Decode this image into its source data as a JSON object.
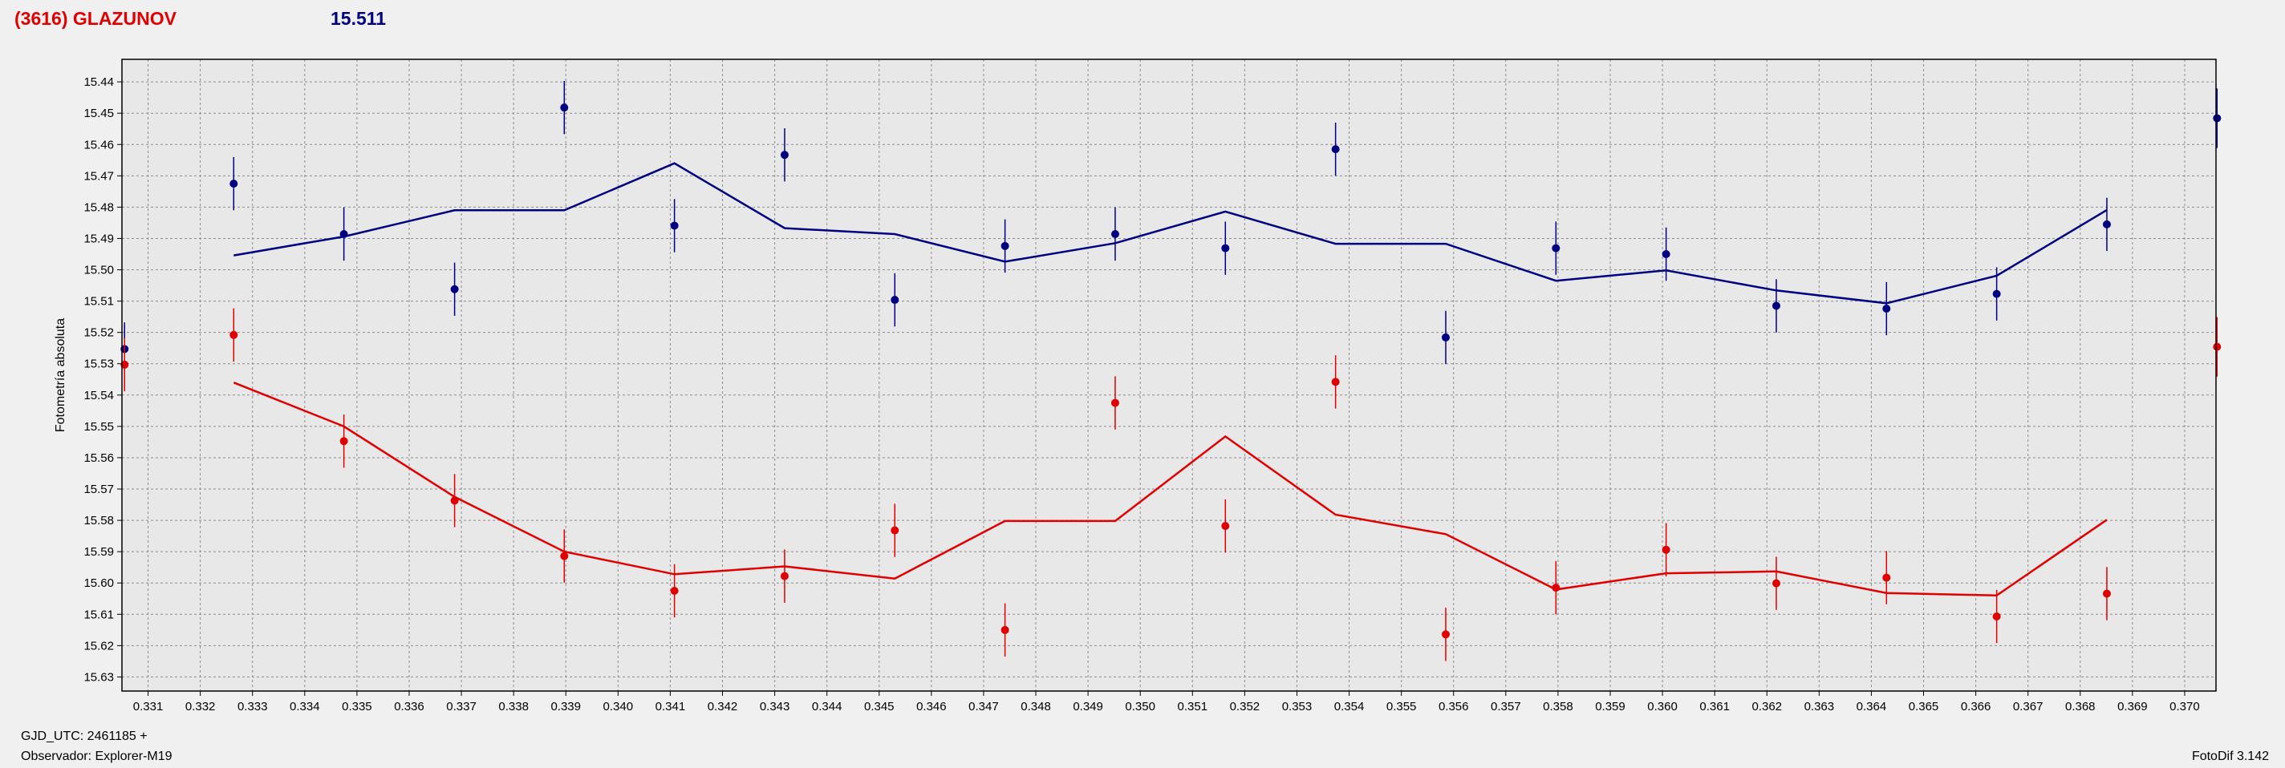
{
  "header": {
    "object": "(3616) GLAZUNOV",
    "mean_mag": "15.511"
  },
  "footer": {
    "gjd": "GJD_UTC: 2461185 +",
    "observer": "Observador: Explorer-M19",
    "software": "FotoDif 3.142"
  },
  "colors": {
    "blue": "#000080",
    "red": "#e00000",
    "plot_bg": "#e8e8e8",
    "grid": "#8c8c8c"
  },
  "chart_data": {
    "type": "scatter",
    "ylabel": "Fotometría absoluta",
    "xlabel": "",
    "xlim": [
      0.3305,
      0.3706
    ],
    "ylim": [
      15.6345,
      15.4328
    ],
    "y_inverted": true,
    "grid": true,
    "x_ticks": [
      0.331,
      0.332,
      0.333,
      0.334,
      0.335,
      0.336,
      0.337,
      0.338,
      0.339,
      0.34,
      0.341,
      0.342,
      0.343,
      0.344,
      0.345,
      0.346,
      0.347,
      0.348,
      0.349,
      0.35,
      0.351,
      0.352,
      0.353,
      0.354,
      0.355,
      0.356,
      0.357,
      0.358,
      0.359,
      0.36,
      0.361,
      0.362,
      0.363,
      0.364,
      0.365,
      0.366,
      0.367,
      0.368,
      0.369,
      0.37
    ],
    "x_tick_labels": [
      "0.331",
      "0.332",
      "0.333",
      "0.334",
      "0.335",
      "0.336",
      "0.337",
      "0.338",
      "0.339",
      "0.340",
      "0.341",
      "0.342",
      "0.343",
      "0.344",
      "0.345",
      "0.346",
      "0.347",
      "0.348",
      "0.349",
      "0.350",
      "0.351",
      "0.352",
      "0.353",
      "0.354",
      "0.355",
      "0.356",
      "0.357",
      "0.358",
      "0.359",
      "0.360",
      "0.361",
      "0.362",
      "0.363",
      "0.364",
      "0.365",
      "0.366",
      "0.367",
      "0.368",
      "0.369",
      "0.370"
    ],
    "y_ticks": [
      15.44,
      15.45,
      15.46,
      15.47,
      15.48,
      15.49,
      15.5,
      15.51,
      15.52,
      15.53,
      15.54,
      15.55,
      15.56,
      15.57,
      15.58,
      15.59,
      15.6,
      15.61,
      15.62,
      15.63
    ],
    "y_tick_labels": [
      "15.44",
      "15.45",
      "15.46",
      "15.47",
      "15.48",
      "15.49",
      "15.50",
      "15.51",
      "15.52",
      "15.53",
      "15.54",
      "15.55",
      "15.56",
      "15.57",
      "15.58",
      "15.59",
      "15.60",
      "15.61",
      "15.62",
      "15.63"
    ],
    "series": [
      {
        "color": "#000080",
        "points": [
          {
            "x": 0.33055,
            "y": 15.5253,
            "err": 0.0085
          },
          {
            "x": 0.33264,
            "y": 15.4725,
            "err": 0.0085
          },
          {
            "x": 0.33475,
            "y": 15.4886,
            "err": 0.0085
          },
          {
            "x": 0.33687,
            "y": 15.5062,
            "err": 0.0085
          },
          {
            "x": 0.33897,
            "y": 15.4482,
            "err": 0.0085
          },
          {
            "x": 0.34108,
            "y": 15.4859,
            "err": 0.0085
          },
          {
            "x": 0.34319,
            "y": 15.4633,
            "err": 0.0085
          },
          {
            "x": 0.3453,
            "y": 15.5096,
            "err": 0.0085
          },
          {
            "x": 0.34741,
            "y": 15.4924,
            "err": 0.0085
          },
          {
            "x": 0.34952,
            "y": 15.4886,
            "err": 0.0085
          },
          {
            "x": 0.35163,
            "y": 15.4931,
            "err": 0.0085
          },
          {
            "x": 0.35374,
            "y": 15.4615,
            "err": 0.0085
          },
          {
            "x": 0.35585,
            "y": 15.5216,
            "err": 0.0085
          },
          {
            "x": 0.35796,
            "y": 15.4931,
            "err": 0.0085
          },
          {
            "x": 0.36007,
            "y": 15.495,
            "err": 0.0085
          },
          {
            "x": 0.36218,
            "y": 15.5115,
            "err": 0.0085
          },
          {
            "x": 0.36429,
            "y": 15.5124,
            "err": 0.0085
          },
          {
            "x": 0.3664,
            "y": 15.5077,
            "err": 0.0085
          },
          {
            "x": 0.36851,
            "y": 15.4855,
            "err": 0.0085
          },
          {
            "x": 0.37062,
            "y": 15.4516,
            "err": 0.0095
          }
        ],
        "line": [
          {
            "x": 0.33264,
            "y": 15.4954
          },
          {
            "x": 0.33475,
            "y": 15.4894
          },
          {
            "x": 0.33687,
            "y": 15.481
          },
          {
            "x": 0.33897,
            "y": 15.481
          },
          {
            "x": 0.34108,
            "y": 15.466
          },
          {
            "x": 0.34319,
            "y": 15.4867
          },
          {
            "x": 0.3453,
            "y": 15.4886
          },
          {
            "x": 0.34741,
            "y": 15.4974
          },
          {
            "x": 0.34952,
            "y": 15.4915
          },
          {
            "x": 0.35163,
            "y": 15.4814
          },
          {
            "x": 0.35374,
            "y": 15.4917
          },
          {
            "x": 0.35585,
            "y": 15.4917
          },
          {
            "x": 0.35796,
            "y": 15.5035
          },
          {
            "x": 0.36007,
            "y": 15.5002
          },
          {
            "x": 0.36218,
            "y": 15.5066
          },
          {
            "x": 0.36429,
            "y": 15.5107
          },
          {
            "x": 0.3664,
            "y": 15.5019
          },
          {
            "x": 0.36851,
            "y": 15.4809
          }
        ]
      },
      {
        "color": "#e00000",
        "points": [
          {
            "x": 0.33055,
            "y": 15.5303,
            "err": 0.0085
          },
          {
            "x": 0.33264,
            "y": 15.5208,
            "err": 0.0085
          },
          {
            "x": 0.33475,
            "y": 15.5547,
            "err": 0.0085
          },
          {
            "x": 0.33687,
            "y": 15.5737,
            "err": 0.0085
          },
          {
            "x": 0.33897,
            "y": 15.5914,
            "err": 0.0085
          },
          {
            "x": 0.34108,
            "y": 15.6025,
            "err": 0.0085
          },
          {
            "x": 0.34319,
            "y": 15.5978,
            "err": 0.0085
          },
          {
            "x": 0.3453,
            "y": 15.5832,
            "err": 0.0085
          },
          {
            "x": 0.34741,
            "y": 15.615,
            "err": 0.0085
          },
          {
            "x": 0.34952,
            "y": 15.5425,
            "err": 0.0085
          },
          {
            "x": 0.35163,
            "y": 15.5818,
            "err": 0.0085
          },
          {
            "x": 0.35374,
            "y": 15.5358,
            "err": 0.0085
          },
          {
            "x": 0.35585,
            "y": 15.6164,
            "err": 0.0085
          },
          {
            "x": 0.35796,
            "y": 15.6015,
            "err": 0.0085
          },
          {
            "x": 0.36007,
            "y": 15.5894,
            "err": 0.0085
          },
          {
            "x": 0.36218,
            "y": 15.6001,
            "err": 0.0085
          },
          {
            "x": 0.36429,
            "y": 15.5983,
            "err": 0.0085
          },
          {
            "x": 0.3664,
            "y": 15.6107,
            "err": 0.0085
          },
          {
            "x": 0.36851,
            "y": 15.6034,
            "err": 0.0085
          },
          {
            "x": 0.37062,
            "y": 15.5246,
            "err": 0.0095
          }
        ],
        "line": [
          {
            "x": 0.33264,
            "y": 15.536
          },
          {
            "x": 0.33475,
            "y": 15.55
          },
          {
            "x": 0.33687,
            "y": 15.5725
          },
          {
            "x": 0.33897,
            "y": 15.59
          },
          {
            "x": 0.34108,
            "y": 15.5972
          },
          {
            "x": 0.34319,
            "y": 15.5947
          },
          {
            "x": 0.3453,
            "y": 15.5986
          },
          {
            "x": 0.34741,
            "y": 15.5802
          },
          {
            "x": 0.34952,
            "y": 15.5802
          },
          {
            "x": 0.35163,
            "y": 15.5532
          },
          {
            "x": 0.35374,
            "y": 15.5782
          },
          {
            "x": 0.35585,
            "y": 15.5844
          },
          {
            "x": 0.35796,
            "y": 15.6021
          },
          {
            "x": 0.36007,
            "y": 15.5969
          },
          {
            "x": 0.36218,
            "y": 15.5963
          },
          {
            "x": 0.36429,
            "y": 15.6032
          },
          {
            "x": 0.3664,
            "y": 15.604
          },
          {
            "x": 0.36851,
            "y": 15.5798
          }
        ]
      }
    ]
  }
}
